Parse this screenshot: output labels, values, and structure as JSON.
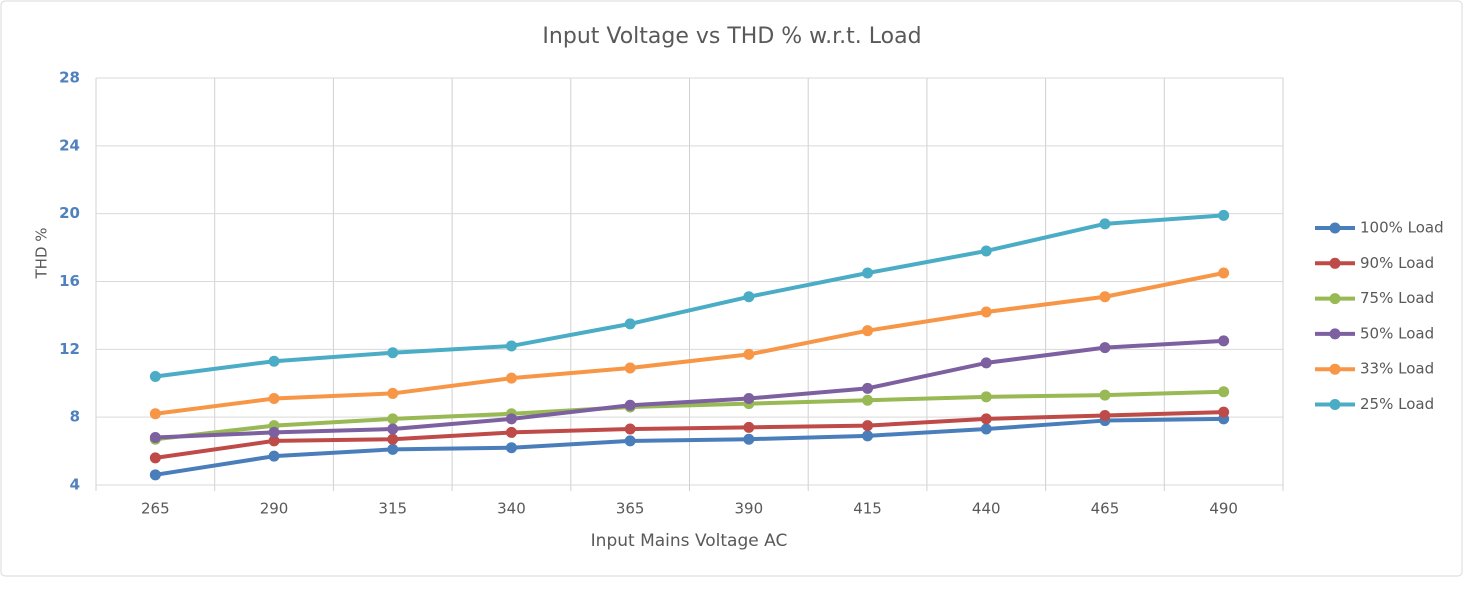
{
  "chart_data": {
    "type": "line",
    "title": "Input Voltage vs THD % w.r.t. Load",
    "x_label": "Input Mains Voltage AC",
    "y_label": "THD %",
    "categories": [
      "265",
      "290",
      "315",
      "340",
      "365",
      "390",
      "415",
      "440",
      "465",
      "490"
    ],
    "series": [
      {
        "name": "100% Load",
        "color": "#4a7ebb",
        "values": [
          4.6,
          5.7,
          6.1,
          6.2,
          6.6,
          6.7,
          6.9,
          7.3,
          7.8,
          7.9
        ]
      },
      {
        "name": "90% Load",
        "color": "#be4b48",
        "values": [
          5.6,
          6.6,
          6.7,
          7.1,
          7.3,
          7.4,
          7.5,
          7.9,
          8.1,
          8.3
        ]
      },
      {
        "name": "75% Load",
        "color": "#98b954",
        "values": [
          6.7,
          7.5,
          7.9,
          8.2,
          8.6,
          8.8,
          9.0,
          9.2,
          9.3,
          9.5
        ]
      },
      {
        "name": "50% Load",
        "color": "#7d60a0",
        "values": [
          6.8,
          7.1,
          7.3,
          7.9,
          8.7,
          9.1,
          9.7,
          11.2,
          12.1,
          12.5
        ]
      },
      {
        "name": "33% Load",
        "color": "#f79646",
        "values": [
          8.2,
          9.1,
          9.4,
          10.3,
          10.9,
          11.7,
          13.1,
          14.2,
          15.1,
          16.5
        ]
      },
      {
        "name": "25% Load",
        "color": "#4bacc6",
        "values": [
          10.4,
          11.3,
          11.8,
          12.2,
          13.5,
          15.1,
          16.5,
          17.8,
          19.4,
          19.9
        ]
      }
    ],
    "ylim": [
      4,
      28
    ],
    "yticks": [
      4,
      8,
      12,
      16,
      20,
      24,
      28
    ],
    "grid": true,
    "legend": "right"
  }
}
